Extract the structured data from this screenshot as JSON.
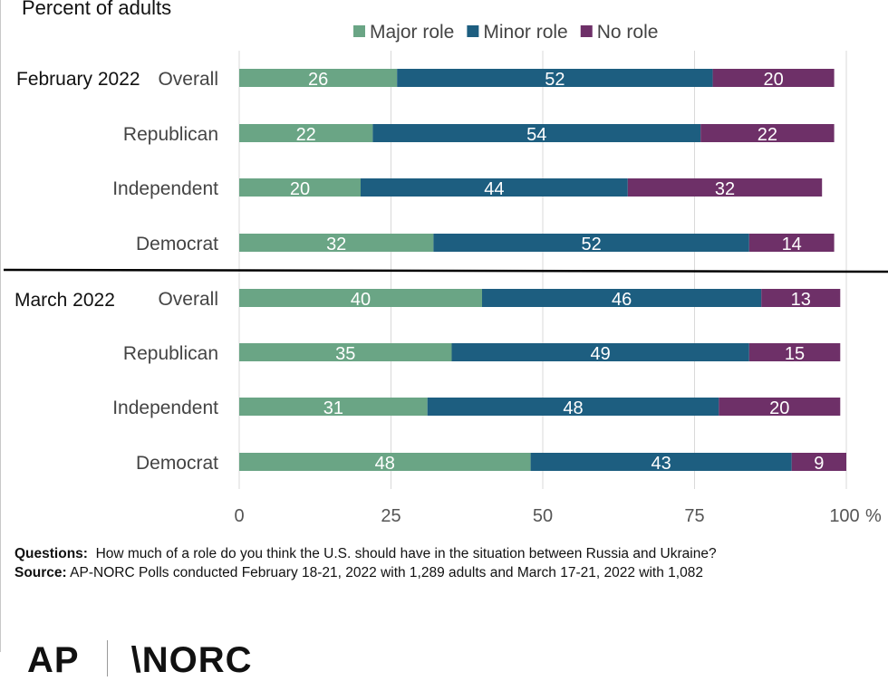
{
  "subtitle": "Percent of adults",
  "chart_data": {
    "type": "bar",
    "orientation": "horizontal",
    "stacked": true,
    "legend": [
      "Major role",
      "Minor role",
      "No role"
    ],
    "legend_position": "top",
    "colors": [
      "#6aa585",
      "#1d5e80",
      "#6e3068"
    ],
    "groups": [
      {
        "label": "February 2022",
        "categories": [
          "Overall",
          "Republican",
          "Independent",
          "Democrat"
        ],
        "series": [
          {
            "name": "Major role",
            "values": [
              26,
              22,
              20,
              32
            ]
          },
          {
            "name": "Minor role",
            "values": [
              52,
              54,
              44,
              52
            ]
          },
          {
            "name": "No role",
            "values": [
              20,
              22,
              32,
              14
            ]
          }
        ]
      },
      {
        "label": "March 2022",
        "categories": [
          "Overall",
          "Republican",
          "Independent",
          "Democrat"
        ],
        "series": [
          {
            "name": "Major role",
            "values": [
              40,
              35,
              31,
              48
            ]
          },
          {
            "name": "Minor role",
            "values": [
              46,
              49,
              48,
              43
            ]
          },
          {
            "name": "No role",
            "values": [
              13,
              15,
              20,
              9
            ]
          }
        ]
      }
    ],
    "xlim": [
      0,
      100
    ],
    "xticks": [
      "0",
      "25",
      "50",
      "75",
      "100"
    ],
    "xunit": "%",
    "grid": "vertical"
  },
  "notes": {
    "questions_label": "Questions:",
    "questions_text": "How much of a role do you think the U.S. should have in the situation between Russia and Ukraine?",
    "source_label": "Source:",
    "source_text": "AP-NORC Polls conducted February 18-21, 2022 with 1,289 adults and March 17-21, 2022 with 1,082"
  },
  "logo": {
    "left": "AP",
    "right": "\\NORC"
  }
}
